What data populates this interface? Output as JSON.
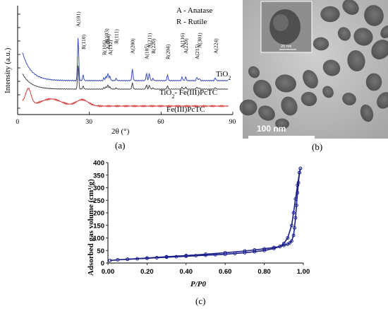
{
  "chart_data": [
    {
      "type": "line",
      "panel": "(a)",
      "xlabel": "2θ (°)",
      "ylabel": "Intensity (a.u.)",
      "xlim": [
        0,
        90
      ],
      "xticks": [
        "0",
        "30",
        "60",
        "90"
      ],
      "legend": [
        {
          "code": "A",
          "text": "A - Anatase"
        },
        {
          "code": "R",
          "text": "R - Rutile"
        }
      ],
      "series": [
        {
          "name": "TiO2",
          "color": "#3a4fb8"
        },
        {
          "name": "TiO2- Fe(III)PcTC",
          "color": "#333333"
        },
        {
          "name": "Fe(III)PcTC",
          "color": "#d83a3a"
        }
      ],
      "peaks": [
        {
          "label": "A(101)",
          "x": 25.3
        },
        {
          "label": "R(110)",
          "x": 27.4
        },
        {
          "label": "R(101)",
          "x": 36.1
        },
        {
          "label": "A(103)",
          "x": 37.0
        },
        {
          "label": "A(004)",
          "x": 37.8
        },
        {
          "label": "A(112)",
          "x": 38.6
        },
        {
          "label": "R(111)",
          "x": 41.2
        },
        {
          "label": "A(200)",
          "x": 48.0
        },
        {
          "label": "A(105)",
          "x": 53.9
        },
        {
          "label": "A(211)",
          "x": 55.1
        },
        {
          "label": "R(220)",
          "x": 56.6
        },
        {
          "label": "R(204)",
          "x": 62.7
        },
        {
          "label": "A(116)",
          "x": 68.8
        },
        {
          "label": "A(220)",
          "x": 70.3
        },
        {
          "label": "A(215)",
          "x": 75.0
        },
        {
          "label": "A(301)",
          "x": 76.0
        },
        {
          "label": "A(224)",
          "x": 82.7
        }
      ]
    },
    {
      "type": "scatter",
      "panel": "(c)",
      "xlabel": "P/P0",
      "ylabel": "Adsorbed gas volume (cm³/g)",
      "xlim": [
        0,
        1.0
      ],
      "ylim": [
        0,
        400
      ],
      "xticks": [
        "0.00",
        "0.20",
        "0.40",
        "0.60",
        "0.80",
        "1.00"
      ],
      "yticks": [
        "0",
        "50",
        "100",
        "150",
        "200",
        "250",
        "300",
        "350",
        "400"
      ],
      "color": "#1a1f8c",
      "series": [
        {
          "branch": "adsorption",
          "x": [
            0.01,
            0.05,
            0.1,
            0.15,
            0.2,
            0.25,
            0.3,
            0.35,
            0.4,
            0.45,
            0.5,
            0.55,
            0.6,
            0.65,
            0.7,
            0.75,
            0.8,
            0.85,
            0.88,
            0.9,
            0.92,
            0.94,
            0.95,
            0.96,
            0.97,
            0.98,
            0.985
          ],
          "y": [
            10,
            13,
            15,
            17,
            19,
            21,
            23,
            25,
            27,
            29,
            31,
            33,
            35,
            38,
            41,
            45,
            50,
            58,
            66,
            78,
            100,
            150,
            200,
            255,
            310,
            360,
            377
          ]
        },
        {
          "branch": "desorption",
          "x": [
            0.985,
            0.98,
            0.975,
            0.97,
            0.965,
            0.96,
            0.955,
            0.95,
            0.94,
            0.93,
            0.92,
            0.9,
            0.88,
            0.85,
            0.8,
            0.75,
            0.7,
            0.6,
            0.5,
            0.4,
            0.3,
            0.2,
            0.1
          ],
          "y": [
            377,
            360,
            320,
            280,
            230,
            180,
            140,
            110,
            88,
            80,
            75,
            70,
            66,
            62,
            57,
            52,
            48,
            41,
            35,
            30,
            25,
            20,
            15
          ]
        }
      ]
    }
  ],
  "images": [
    {
      "panel": "(b)",
      "scale_bar": "100 nm",
      "inset_scale_bar": "20 nm"
    }
  ]
}
